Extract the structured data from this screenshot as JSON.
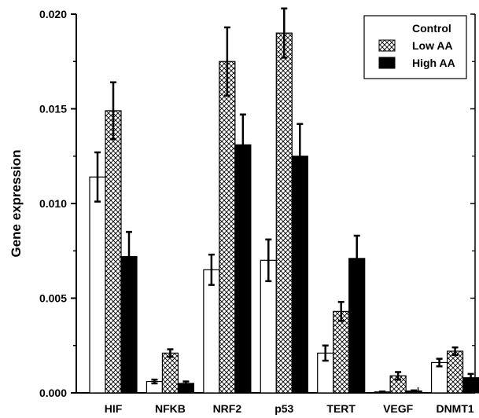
{
  "chart_data": {
    "type": "bar",
    "title": "",
    "xlabel": "",
    "ylabel": "Gene expression",
    "ylim": [
      0,
      0.02
    ],
    "y_ticks": [
      "0.000",
      "0.005",
      "0.010",
      "0.015",
      "0.020"
    ],
    "y_tick_values": [
      0,
      0.005,
      0.01,
      0.015,
      0.02
    ],
    "categories": [
      "HIF",
      "NFKB",
      "NRF2",
      "p53",
      "TERT",
      "VEGF",
      "DNMT1"
    ],
    "legend_position": "top-right",
    "grid": false,
    "series": [
      {
        "name": "Control",
        "fill": "white",
        "color": "#ffffff",
        "values": [
          0.0114,
          0.0006,
          0.0065,
          0.007,
          0.0021,
          5e-05,
          0.0016
        ],
        "errors": [
          0.0013,
          0.0001,
          0.0008,
          0.0011,
          0.0004,
          2e-05,
          0.0002
        ]
      },
      {
        "name": "Low AA",
        "fill": "crosshatch",
        "color": "#000000",
        "values": [
          0.0149,
          0.0021,
          0.0175,
          0.019,
          0.0043,
          0.0009,
          0.0022
        ],
        "errors": [
          0.0015,
          0.0002,
          0.0018,
          0.0013,
          0.0005,
          0.0002,
          0.0002
        ]
      },
      {
        "name": "High AA",
        "fill": "black",
        "color": "#000000",
        "values": [
          0.0072,
          0.0005,
          0.0131,
          0.0125,
          0.0071,
          0.0001,
          0.0008
        ],
        "errors": [
          0.0013,
          0.0001,
          0.0016,
          0.0017,
          0.0012,
          3e-05,
          0.0002
        ]
      }
    ]
  }
}
